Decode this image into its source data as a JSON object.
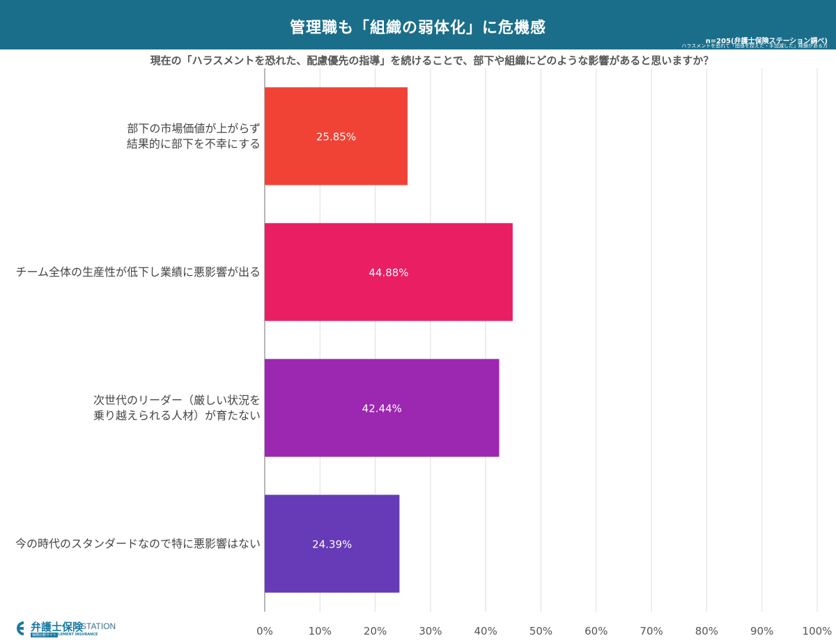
{
  "header": {
    "title": "管理職も「組織の弱体化」に危機感",
    "sample_note": "n=205(弁護士保険ステーション調べ)",
    "target_note": "ハラスメントを恐れて「指導を控えた・手加減した」経験がある方",
    "background_color": "#1a6e8a"
  },
  "logo": {
    "name": "弁護士保険",
    "station": "STATION",
    "badge": "保険比較サイト",
    "tagline": "ELEMENT INSURANCE",
    "color": "#1a7aa3"
  },
  "chart_data": {
    "type": "bar",
    "orientation": "horizontal",
    "title": "現在の「ハラスメントを恐れた、配慮優先の指導」を続けることで、部下や組織にどのような影響があると思いますか？",
    "categories": [
      [
        "部下の市場価値が上がらず",
        "結果的に部下を不幸にする"
      ],
      [
        "チーム全体の生産性が低下し業績に悪影響が出る"
      ],
      [
        "次世代のリーダー（厳しい状況を",
        "乗り越えられる人材）が育たない"
      ],
      [
        "今の時代のスタンダードなので特に悪影響はない"
      ]
    ],
    "values": [
      25.85,
      44.88,
      42.44,
      24.39
    ],
    "value_labels": [
      "25.85%",
      "44.88%",
      "42.44%",
      "24.39%"
    ],
    "colors": [
      "#f04336",
      "#e91e63",
      "#9c27b0",
      "#673ab7"
    ],
    "xlim": [
      0,
      100
    ],
    "xticks": [
      "0%",
      "10%",
      "20%",
      "30%",
      "40%",
      "50%",
      "60%",
      "70%",
      "80%",
      "90%",
      "100%"
    ],
    "grid": true,
    "legend": "none"
  }
}
